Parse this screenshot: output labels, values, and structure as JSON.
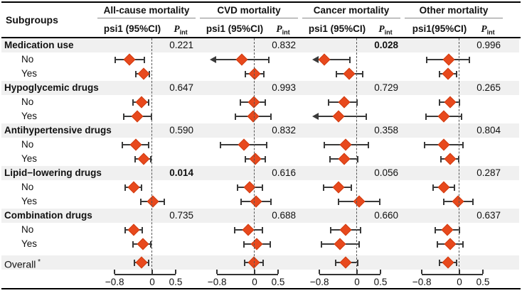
{
  "figure": {
    "subgroups_label": "Subgroups",
    "accent_color": "#E8491D",
    "band_color": "#F0F0F0"
  },
  "chart_data": {
    "type": "forest",
    "title": "",
    "panels": [
      {
        "title": "All-cause mortality",
        "effect_label": "psi1 (95%CI)",
        "p_label": "P",
        "p_sub": "int"
      },
      {
        "title": "CVD mortality",
        "effect_label": "psi1 (95%CI)",
        "p_label": "P",
        "p_sub": "int"
      },
      {
        "title": "Cancer mortality",
        "effect_label": "psi1 (95%CI)",
        "p_label": "P",
        "p_sub": "int"
      },
      {
        "title": "Other mortality",
        "effect_label": "psi1(95%CI)",
        "p_label": "P",
        "p_sub": "int"
      }
    ],
    "x_axis": {
      "ticks": [
        -0.8,
        0,
        0.5
      ],
      "tick_labels": [
        "−0.8",
        "0",
        "0.5"
      ],
      "zero_line": 0,
      "range": [
        -0.9,
        0.55
      ]
    },
    "groups": [
      {
        "label": "Medication use",
        "p_int": [
          "0.221",
          "0.832",
          "0.028",
          "0.996"
        ],
        "p_bold": [
          false,
          false,
          true,
          false
        ],
        "items": [
          {
            "label": "No",
            "estimates": [
              {
                "est": -0.48,
                "lo": -0.79,
                "hi": -0.16
              },
              {
                "est": -0.28,
                "lo": -0.88,
                "hi": 0.3,
                "clip_lo": true
              },
              {
                "est": -0.7,
                "lo": -0.88,
                "hi": -0.15,
                "clip_lo": true
              },
              {
                "est": -0.23,
                "lo": -0.7,
                "hi": 0.21
              }
            ]
          },
          {
            "label": "Yes",
            "estimates": [
              {
                "est": -0.18,
                "lo": -0.35,
                "hi": -0.06
              },
              {
                "est": 0.0,
                "lo": -0.2,
                "hi": 0.2
              },
              {
                "est": -0.16,
                "lo": -0.44,
                "hi": 0.12
              },
              {
                "est": -0.24,
                "lo": -0.43,
                "hi": -0.06
              }
            ]
          }
        ]
      },
      {
        "label": "Hypoglycemic drugs",
        "p_int": [
          "0.647",
          "0.993",
          "0.729",
          "0.265"
        ],
        "p_bold": [
          false,
          false,
          false,
          false
        ],
        "items": [
          {
            "label": "No",
            "estimates": [
              {
                "est": -0.22,
                "lo": -0.41,
                "hi": -0.07
              },
              {
                "est": -0.02,
                "lo": -0.31,
                "hi": 0.22
              },
              {
                "est": -0.27,
                "lo": -0.61,
                "hi": 0.0
              },
              {
                "est": -0.2,
                "lo": -0.43,
                "hi": 0.0
              }
            ]
          },
          {
            "label": "Yes",
            "estimates": [
              {
                "est": -0.32,
                "lo": -0.61,
                "hi": -0.02
              },
              {
                "est": -0.03,
                "lo": -0.41,
                "hi": 0.35
              },
              {
                "est": -0.39,
                "lo": -0.88,
                "hi": 0.19,
                "clip_lo": true
              },
              {
                "est": -0.33,
                "lo": -0.71,
                "hi": 0.04
              }
            ]
          }
        ]
      },
      {
        "label": "Antihypertensive drugs",
        "p_int": [
          "0.590",
          "0.832",
          "0.358",
          "0.804"
        ],
        "p_bold": [
          false,
          false,
          false,
          false
        ],
        "items": [
          {
            "label": "No",
            "estimates": [
              {
                "est": -0.35,
                "lo": -0.64,
                "hi": -0.07
              },
              {
                "est": -0.23,
                "lo": -0.72,
                "hi": 0.26
              },
              {
                "est": -0.24,
                "lo": -0.7,
                "hi": 0.24
              },
              {
                "est": -0.34,
                "lo": -0.75,
                "hi": 0.08
              }
            ]
          },
          {
            "label": "Yes",
            "estimates": [
              {
                "est": -0.18,
                "lo": -0.36,
                "hi": -0.03
              },
              {
                "est": 0.02,
                "lo": -0.2,
                "hi": 0.23
              },
              {
                "est": -0.27,
                "lo": -0.57,
                "hi": 0.01
              },
              {
                "est": -0.19,
                "lo": -0.39,
                "hi": -0.02
              }
            ]
          }
        ]
      },
      {
        "label": "Lipid−lowering drugs",
        "p_int": [
          "0.014",
          "0.616",
          "0.056",
          "0.287"
        ],
        "p_bold": [
          true,
          false,
          false,
          false
        ],
        "items": [
          {
            "label": "No",
            "estimates": [
              {
                "est": -0.4,
                "lo": -0.58,
                "hi": -0.22
              },
              {
                "est": -0.11,
                "lo": -0.37,
                "hi": 0.17
              },
              {
                "est": -0.4,
                "lo": -0.71,
                "hi": -0.12
              },
              {
                "est": -0.33,
                "lo": -0.56,
                "hi": -0.1
              }
            ]
          },
          {
            "label": "Yes",
            "estimates": [
              {
                "est": 0.01,
                "lo": -0.25,
                "hi": 0.26
              },
              {
                "est": 0.03,
                "lo": -0.29,
                "hi": 0.35
              },
              {
                "est": 0.05,
                "lo": -0.39,
                "hi": 0.49
              },
              {
                "est": -0.03,
                "lo": -0.34,
                "hi": 0.29
              }
            ]
          }
        ]
      },
      {
        "label": "Combination drugs",
        "p_int": [
          "0.735",
          "0.688",
          "0.660",
          "0.637"
        ],
        "p_bold": [
          false,
          false,
          false,
          false
        ],
        "items": [
          {
            "label": "No",
            "estimates": [
              {
                "est": -0.4,
                "lo": -0.58,
                "hi": -0.21
              },
              {
                "est": -0.13,
                "lo": -0.43,
                "hi": 0.17
              },
              {
                "est": -0.24,
                "lo": -0.56,
                "hi": 0.08
              },
              {
                "est": -0.26,
                "lo": -0.52,
                "hi": 0.0
              }
            ]
          },
          {
            "label": "Yes",
            "estimates": [
              {
                "est": -0.19,
                "lo": -0.41,
                "hi": -0.03
              },
              {
                "est": 0.04,
                "lo": -0.23,
                "hi": 0.33
              },
              {
                "est": -0.36,
                "lo": -0.76,
                "hi": 0.04
              },
              {
                "est": -0.19,
                "lo": -0.47,
                "hi": 0.07
              }
            ]
          }
        ]
      }
    ],
    "overall": {
      "label": "Overall",
      "asterisk": "*",
      "estimates": [
        {
          "est": -0.22,
          "lo": -0.38,
          "hi": -0.08
        },
        {
          "est": -0.02,
          "lo": -0.21,
          "hi": 0.18
        },
        {
          "est": -0.25,
          "lo": -0.45,
          "hi": 0.02
        },
        {
          "est": -0.24,
          "lo": -0.42,
          "hi": -0.06
        }
      ]
    }
  }
}
